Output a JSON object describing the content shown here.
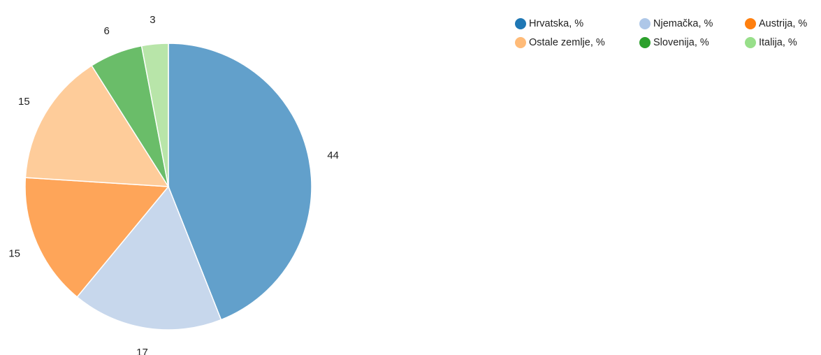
{
  "chart_data": {
    "type": "pie",
    "title": "",
    "legend_position": "top-right",
    "slices": [
      {
        "label": "Hrvatska, %",
        "value": 44,
        "value_label": "44",
        "color": "#62a0cb",
        "legend_color": "#1f77b4"
      },
      {
        "label": "Njemačka, %",
        "value": 17,
        "value_label": "17",
        "color": "#c7d7ec",
        "legend_color": "#aec7e8"
      },
      {
        "label": "Austrija, %",
        "value": 15,
        "value_label": "15",
        "color": "#fea559",
        "legend_color": "#ff7f0e"
      },
      {
        "label": "Ostale zemlje, %",
        "value": 15,
        "value_label": "15",
        "color": "#fecc9a",
        "legend_color": "#ffbb78"
      },
      {
        "label": "Slovenija, %",
        "value": 6,
        "value_label": "6",
        "color": "#6abd69",
        "legend_color": "#2ca02c"
      },
      {
        "label": "Italija, %",
        "value": 3,
        "value_label": "3",
        "color": "#b8e5a9",
        "legend_color": "#98df8a"
      }
    ]
  },
  "legend": {
    "rows": [
      [
        0,
        1,
        2
      ],
      [
        3,
        4,
        5
      ]
    ]
  }
}
